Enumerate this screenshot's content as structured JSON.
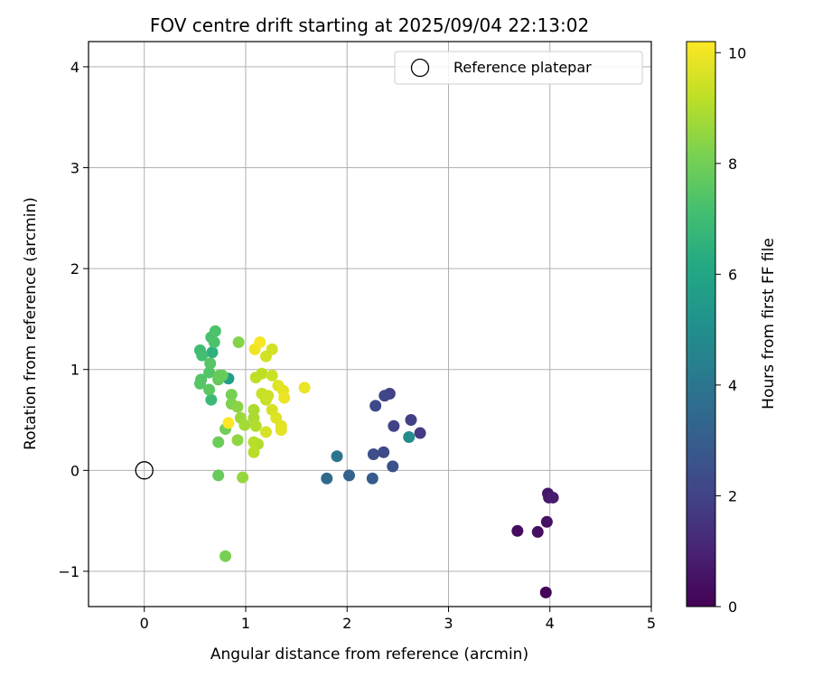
{
  "chart_data": {
    "type": "scatter",
    "title": "FOV centre drift starting at 2025/09/04 22:13:02",
    "xlabel": "Angular distance from reference (arcmin)",
    "ylabel": "Rotation from reference (arcmin)",
    "xlim": [
      -0.55,
      5
    ],
    "ylim": [
      -1.35,
      4.25
    ],
    "x_ticks": [
      0,
      1,
      2,
      3,
      4,
      5
    ],
    "x_tick_labels": [
      "0",
      "1",
      "2",
      "3",
      "4",
      "5"
    ],
    "y_ticks": [
      -1,
      0,
      1,
      2,
      3,
      4
    ],
    "y_tick_labels": [
      "−1",
      "0",
      "1",
      "2",
      "3",
      "4"
    ],
    "grid": true,
    "legend": {
      "position": "top-right",
      "entries": [
        "Reference platepar"
      ]
    },
    "colorbar": {
      "label": "Hours from first FF file",
      "range": [
        0,
        10.2
      ],
      "ticks": [
        0,
        2,
        4,
        6,
        8,
        10
      ],
      "tick_labels": [
        "0",
        "2",
        "4",
        "6",
        "8",
        "10"
      ],
      "colormap": "viridis"
    },
    "reference": {
      "name": "Reference platepar",
      "x": 0,
      "y": 0
    },
    "series": [
      {
        "points": [
          {
            "x": 3.96,
            "y": -1.21,
            "c": 0.1
          },
          {
            "x": 3.68,
            "y": -0.6,
            "c": 0.3
          },
          {
            "x": 3.88,
            "y": -0.61,
            "c": 0.4
          },
          {
            "x": 3.97,
            "y": -0.51,
            "c": 0.5
          },
          {
            "x": 3.98,
            "y": -0.23,
            "c": 0.6
          },
          {
            "x": 3.99,
            "y": -0.27,
            "c": 0.7
          },
          {
            "x": 4.03,
            "y": -0.27,
            "c": 0.8
          },
          {
            "x": 2.72,
            "y": 0.37,
            "c": 1.8
          },
          {
            "x": 2.63,
            "y": 0.5,
            "c": 1.9
          },
          {
            "x": 2.46,
            "y": 0.44,
            "c": 2.0
          },
          {
            "x": 2.42,
            "y": 0.76,
            "c": 2.0
          },
          {
            "x": 2.37,
            "y": 0.74,
            "c": 2.1
          },
          {
            "x": 2.28,
            "y": 0.64,
            "c": 2.2
          },
          {
            "x": 2.36,
            "y": 0.18,
            "c": 2.3
          },
          {
            "x": 2.26,
            "y": 0.16,
            "c": 2.4
          },
          {
            "x": 2.45,
            "y": 0.04,
            "c": 2.5
          },
          {
            "x": 2.25,
            "y": -0.08,
            "c": 2.9
          },
          {
            "x": 2.02,
            "y": -0.05,
            "c": 3.2
          },
          {
            "x": 1.8,
            "y": -0.08,
            "c": 3.5
          },
          {
            "x": 1.9,
            "y": 0.14,
            "c": 4.0
          },
          {
            "x": 2.61,
            "y": 0.33,
            "c": 4.9
          },
          {
            "x": 0.83,
            "y": 0.91,
            "c": 5.7
          },
          {
            "x": 0.67,
            "y": 1.17,
            "c": 6.5
          },
          {
            "x": 0.66,
            "y": 0.7,
            "c": 6.9
          },
          {
            "x": 0.55,
            "y": 1.19,
            "c": 7.0
          },
          {
            "x": 0.57,
            "y": 1.14,
            "c": 7.1
          },
          {
            "x": 0.66,
            "y": 1.32,
            "c": 7.2
          },
          {
            "x": 0.7,
            "y": 1.38,
            "c": 7.3
          },
          {
            "x": 0.69,
            "y": 1.27,
            "c": 7.3
          },
          {
            "x": 0.64,
            "y": 0.97,
            "c": 7.4
          },
          {
            "x": 0.56,
            "y": 0.9,
            "c": 7.4
          },
          {
            "x": 0.55,
            "y": 0.86,
            "c": 7.5
          },
          {
            "x": 0.65,
            "y": 1.06,
            "c": 7.5
          },
          {
            "x": 0.64,
            "y": 0.8,
            "c": 7.6
          },
          {
            "x": 0.73,
            "y": 0.9,
            "c": 7.7
          },
          {
            "x": 0.74,
            "y": 0.94,
            "c": 7.8
          },
          {
            "x": 0.77,
            "y": 0.94,
            "c": 7.8
          },
          {
            "x": 0.73,
            "y": -0.05,
            "c": 7.8
          },
          {
            "x": 0.73,
            "y": 0.28,
            "c": 7.9
          },
          {
            "x": 0.8,
            "y": 0.41,
            "c": 8.0
          },
          {
            "x": 0.8,
            "y": -0.85,
            "c": 8.1
          },
          {
            "x": 0.86,
            "y": 0.75,
            "c": 8.1
          },
          {
            "x": 0.86,
            "y": 0.66,
            "c": 8.2
          },
          {
            "x": 0.93,
            "y": 1.27,
            "c": 8.3
          },
          {
            "x": 0.92,
            "y": 0.63,
            "c": 8.4
          },
          {
            "x": 0.92,
            "y": 0.3,
            "c": 8.5
          },
          {
            "x": 0.97,
            "y": -0.07,
            "c": 8.6
          },
          {
            "x": 0.95,
            "y": 0.52,
            "c": 8.7
          },
          {
            "x": 0.99,
            "y": 0.45,
            "c": 8.8
          },
          {
            "x": 1.08,
            "y": 0.6,
            "c": 8.9
          },
          {
            "x": 1.08,
            "y": 0.52,
            "c": 8.9
          },
          {
            "x": 1.1,
            "y": 0.44,
            "c": 9.0
          },
          {
            "x": 1.12,
            "y": 0.26,
            "c": 9.0
          },
          {
            "x": 1.08,
            "y": 0.28,
            "c": 9.1
          },
          {
            "x": 1.08,
            "y": 0.18,
            "c": 9.1
          },
          {
            "x": 1.1,
            "y": 0.92,
            "c": 9.2
          },
          {
            "x": 1.16,
            "y": 0.96,
            "c": 9.2
          },
          {
            "x": 1.16,
            "y": 0.76,
            "c": 9.3
          },
          {
            "x": 1.2,
            "y": 0.7,
            "c": 9.3
          },
          {
            "x": 1.22,
            "y": 0.74,
            "c": 9.4
          },
          {
            "x": 1.26,
            "y": 0.94,
            "c": 9.4
          },
          {
            "x": 1.26,
            "y": 1.2,
            "c": 9.5
          },
          {
            "x": 1.2,
            "y": 1.13,
            "c": 9.5
          },
          {
            "x": 1.2,
            "y": 0.38,
            "c": 9.6
          },
          {
            "x": 1.26,
            "y": 0.6,
            "c": 9.6
          },
          {
            "x": 1.3,
            "y": 0.52,
            "c": 9.7
          },
          {
            "x": 1.32,
            "y": 0.84,
            "c": 9.7
          },
          {
            "x": 1.35,
            "y": 0.44,
            "c": 9.7
          },
          {
            "x": 1.35,
            "y": 0.4,
            "c": 9.8
          },
          {
            "x": 1.37,
            "y": 0.79,
            "c": 9.8
          },
          {
            "x": 1.38,
            "y": 0.72,
            "c": 9.9
          },
          {
            "x": 1.58,
            "y": 0.82,
            "c": 9.9
          },
          {
            "x": 1.09,
            "y": 1.2,
            "c": 10.0
          },
          {
            "x": 1.14,
            "y": 1.27,
            "c": 10.1
          },
          {
            "x": 0.83,
            "y": 0.47,
            "c": 10.2
          }
        ]
      }
    ]
  }
}
